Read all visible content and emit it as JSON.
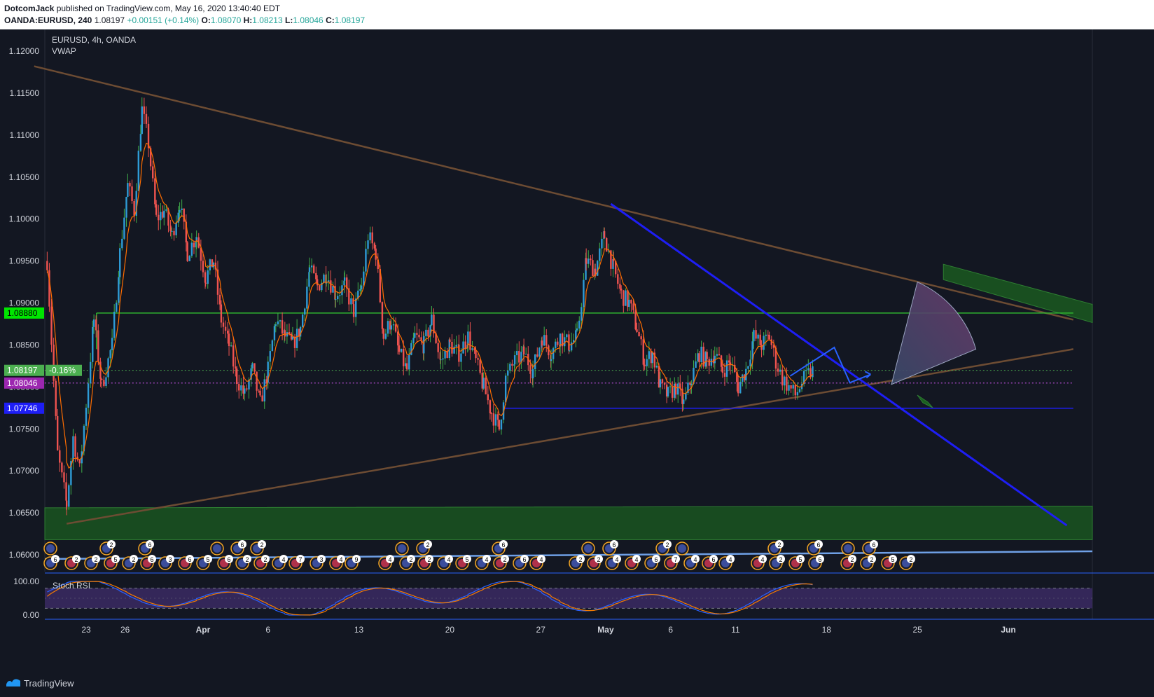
{
  "header": {
    "author": "DotcomJack",
    "published_text": " published on TradingView.com, May 16, 2020 13:40:40 EDT",
    "symbol": "OANDA:EURUSD, 240",
    "last": "1.08197",
    "change": "+0.00151 (+0.14%)",
    "o_label": "O:",
    "o_value": "1.08070",
    "h_label": "H:",
    "h_value": "1.08213",
    "l_label": "L:",
    "l_value": "1.08046",
    "c_label": "C:",
    "c_value": "1.08197"
  },
  "legend": {
    "title": "EURUSD, 4h, OANDA",
    "indicator": "VWAP",
    "osc_title": "Stoch RSI"
  },
  "footer": {
    "brand": "TradingView"
  },
  "colors": {
    "background": "#131722",
    "up": "#26a69a",
    "down": "#ef5350",
    "trendline_brown": "#6d4c33",
    "blue_line": "#1e1ef5",
    "green_zone": "#1f5e26",
    "green_line": "#2fb52f",
    "stoch_k": "#2962ff",
    "stoch_d": "#f57c00",
    "vwap": "#ff6d00"
  },
  "price_badges": [
    {
      "label": "1.08880",
      "value": 1.0888,
      "color": "#00e600",
      "text_color": "#000000"
    },
    {
      "label": "1.08197",
      "value": 1.08197,
      "color": "#4caf50",
      "text_color": "#ffffff",
      "extra": "-0.16%"
    },
    {
      "label": "1.08046",
      "value": 1.08046,
      "color": "#9c27b0",
      "text_color": "#ffffff"
    },
    {
      "label": "1.07746",
      "value": 1.07746,
      "color": "#1e1ef5",
      "text_color": "#ffffff"
    }
  ],
  "chart_data": {
    "type": "candlestick",
    "title": "EURUSD, 4h, OANDA",
    "ylim": [
      1.0575,
      1.1225
    ],
    "y_ticks": [
      "1.12000",
      "1.11500",
      "1.11000",
      "1.10500",
      "1.10000",
      "1.09500",
      "1.09000",
      "1.08500",
      "1.08000",
      "1.07500",
      "1.07000",
      "1.06500",
      "1.06000"
    ],
    "x_ticks": [
      "23",
      "26",
      "Apr",
      "6",
      "13",
      "20",
      "27",
      "May",
      "6",
      "11",
      "18",
      "25",
      "Jun"
    ],
    "x_tick_days": [
      23,
      26,
      32,
      37,
      44,
      51,
      58,
      63,
      68,
      73,
      80,
      87,
      94
    ],
    "osc_ticks": [
      "100.00",
      "0.00"
    ],
    "swing_points": [
      [
        20.0,
        1.095
      ],
      [
        20.8,
        1.072
      ],
      [
        21.5,
        1.066
      ],
      [
        22.0,
        1.074
      ],
      [
        22.5,
        1.07
      ],
      [
        23.0,
        1.078
      ],
      [
        23.6,
        1.088
      ],
      [
        24.2,
        1.08
      ],
      [
        25.0,
        1.085
      ],
      [
        25.6,
        1.096
      ],
      [
        26.2,
        1.104
      ],
      [
        26.7,
        1.101
      ],
      [
        27.3,
        1.113
      ],
      [
        27.8,
        1.109
      ],
      [
        28.4,
        1.1
      ],
      [
        29.0,
        1.101
      ],
      [
        29.6,
        1.098
      ],
      [
        30.2,
        1.102
      ],
      [
        30.8,
        1.096
      ],
      [
        31.5,
        1.098
      ],
      [
        32.2,
        1.093
      ],
      [
        32.8,
        1.095
      ],
      [
        33.4,
        1.088
      ],
      [
        34.0,
        1.085
      ],
      [
        34.6,
        1.081
      ],
      [
        35.2,
        1.079
      ],
      [
        35.8,
        1.082
      ],
      [
        36.4,
        1.078
      ],
      [
        37.0,
        1.082
      ],
      [
        37.6,
        1.088
      ],
      [
        38.3,
        1.086
      ],
      [
        38.9,
        1.085
      ],
      [
        39.5,
        1.087
      ],
      [
        40.2,
        1.094
      ],
      [
        40.8,
        1.092
      ],
      [
        41.5,
        1.0935
      ],
      [
        42.2,
        1.091
      ],
      [
        42.9,
        1.092
      ],
      [
        43.6,
        1.089
      ],
      [
        44.2,
        1.092
      ],
      [
        44.7,
        1.098
      ],
      [
        45.3,
        1.096
      ],
      [
        45.9,
        1.086
      ],
      [
        46.5,
        1.088
      ],
      [
        47.1,
        1.084
      ],
      [
        47.7,
        1.082
      ],
      [
        48.3,
        1.086
      ],
      [
        49.0,
        1.085
      ],
      [
        49.6,
        1.088
      ],
      [
        50.3,
        1.083
      ],
      [
        51.0,
        1.085
      ],
      [
        51.7,
        1.084
      ],
      [
        52.4,
        1.086
      ],
      [
        53.0,
        1.083
      ],
      [
        53.6,
        1.08
      ],
      [
        54.2,
        1.077
      ],
      [
        54.8,
        1.075
      ],
      [
        55.3,
        1.081
      ],
      [
        56.0,
        1.083
      ],
      [
        56.7,
        1.084
      ],
      [
        57.4,
        1.082
      ],
      [
        58.1,
        1.086
      ],
      [
        58.8,
        1.084
      ],
      [
        59.5,
        1.086
      ],
      [
        60.2,
        1.085
      ],
      [
        60.8,
        1.086
      ],
      [
        61.5,
        1.095
      ],
      [
        62.2,
        1.094
      ],
      [
        62.9,
        1.098
      ],
      [
        63.6,
        1.094
      ],
      [
        64.2,
        1.091
      ],
      [
        64.8,
        1.09
      ],
      [
        65.4,
        1.087
      ],
      [
        66.0,
        1.083
      ],
      [
        66.6,
        1.084
      ],
      [
        67.2,
        1.08
      ],
      [
        67.8,
        1.079
      ],
      [
        68.4,
        1.08
      ],
      [
        69.0,
        1.078
      ],
      [
        69.6,
        1.081
      ],
      [
        70.2,
        1.084
      ],
      [
        70.8,
        1.083
      ],
      [
        71.4,
        1.084
      ],
      [
        72.0,
        1.082
      ],
      [
        72.6,
        1.083
      ],
      [
        73.2,
        1.08
      ],
      [
        73.8,
        1.082
      ],
      [
        74.4,
        1.086
      ],
      [
        75.0,
        1.085
      ],
      [
        75.6,
        1.086
      ],
      [
        76.1,
        1.083
      ],
      [
        76.6,
        1.081
      ],
      [
        77.1,
        1.08
      ],
      [
        77.6,
        1.079
      ],
      [
        78.1,
        1.0805
      ],
      [
        78.6,
        1.0815
      ],
      [
        79.0,
        1.082
      ]
    ],
    "lines": {
      "upper_trend": [
        [
          19.0,
          1.1182
        ],
        [
          99.0,
          1.088
        ]
      ],
      "lower_trend": [
        [
          21.5,
          1.0637
        ],
        [
          99.0,
          1.0845
        ]
      ],
      "blue_trend": [
        [
          63.4,
          1.1018
        ],
        [
          98.5,
          1.0635
        ]
      ],
      "support_blue": [
        [
          55.2,
          1.07746
        ],
        [
          99.0,
          1.07746
        ]
      ],
      "resistance_green": [
        [
          23.8,
          1.0888
        ],
        [
          99.0,
          1.0888
        ]
      ],
      "current_dotted": [
        [
          19.0,
          1.08197
        ],
        [
          99.0,
          1.08197
        ]
      ],
      "low_dotted": [
        [
          19.0,
          1.08046
        ],
        [
          99.0,
          1.08046
        ]
      ]
    },
    "zones": {
      "bottom": {
        "x1": 19.0,
        "x2": 99.0,
        "y_top": 1.0656,
        "y_bottom": 1.0618,
        "y_top_right": 1.0658,
        "y_bottom_right": 1.0618
      },
      "top_right": {
        "x1": 89.0,
        "x2": 99.0
      }
    },
    "vwap_note": "orange line overlay",
    "projection": {
      "path": [
        [
          77.2,
          1.0813
        ],
        [
          80.6,
          1.0847
        ],
        [
          81.8,
          1.0805
        ],
        [
          83.4,
          1.0815
        ]
      ],
      "fan_apex": [
        85.0,
        1.0803
      ],
      "fan_ends": [
        [
          87.0,
          1.0925
        ],
        [
          91.5,
          1.0845
        ]
      ]
    }
  }
}
